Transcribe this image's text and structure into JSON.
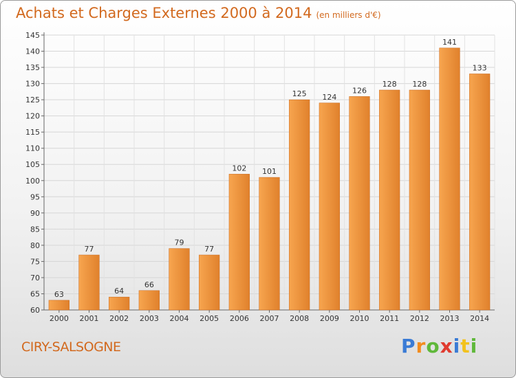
{
  "header": {
    "title": "Achats et Charges Externes 2000 à 2014",
    "subtitle": "(en milliers d'€)"
  },
  "footer": {
    "commune": "CIRY-SALSOGNE",
    "logo": "Proxiti"
  },
  "colors": {
    "bar_light": "#f7a54f",
    "bar_dark": "#c8661a",
    "title": "#d2691e"
  },
  "chart_data": {
    "type": "bar",
    "title": "Achats et Charges Externes 2000 à 2014",
    "subtitle": "(en milliers d'€)",
    "categories": [
      "2000",
      "2001",
      "2002",
      "2003",
      "2004",
      "2005",
      "2006",
      "2007",
      "2008",
      "2009",
      "2010",
      "2011",
      "2012",
      "2013",
      "2014"
    ],
    "values": [
      63,
      77,
      64,
      66,
      79,
      77,
      102,
      101,
      125,
      124,
      126,
      128,
      128,
      141,
      133
    ],
    "ylim": [
      60,
      145
    ],
    "yticks": [
      60,
      65,
      70,
      75,
      80,
      85,
      90,
      95,
      100,
      105,
      110,
      115,
      120,
      125,
      130,
      135,
      140,
      145
    ],
    "grid": true,
    "legend": "none"
  }
}
